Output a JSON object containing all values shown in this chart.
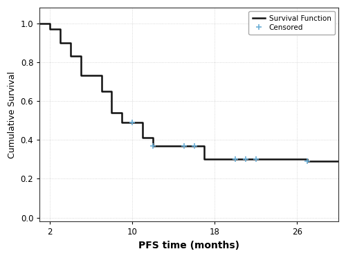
{
  "surv_x": [
    1,
    2,
    2,
    3,
    3,
    4,
    4,
    5,
    5,
    7,
    7,
    8,
    8,
    9,
    9,
    10,
    10,
    11,
    11,
    12,
    12,
    13,
    13,
    17,
    17,
    18,
    18,
    27,
    27,
    30
  ],
  "surv_y": [
    1.0,
    1.0,
    0.97,
    0.97,
    0.9,
    0.9,
    0.83,
    0.83,
    0.73,
    0.73,
    0.65,
    0.65,
    0.54,
    0.54,
    0.49,
    0.49,
    0.49,
    0.49,
    0.41,
    0.41,
    0.37,
    0.37,
    0.37,
    0.37,
    0.3,
    0.3,
    0.3,
    0.3,
    0.29,
    0.29
  ],
  "censored_x": [
    10,
    12,
    15,
    16,
    20,
    21,
    22,
    27
  ],
  "censored_y": [
    0.49,
    0.37,
    0.37,
    0.37,
    0.3,
    0.3,
    0.3,
    0.29
  ],
  "xlim": [
    1,
    30
  ],
  "ylim": [
    -0.02,
    1.08
  ],
  "xticks": [
    2,
    10,
    18,
    26
  ],
  "yticks": [
    0.0,
    0.2,
    0.4,
    0.6,
    0.8,
    1.0
  ],
  "xlabel": "PFS time (months)",
  "ylabel": "Cumulative Survival",
  "line_color": "#111111",
  "censored_color": "#6baed6",
  "grid_color": "#cccccc",
  "bg_color": "#ffffff",
  "legend_labels": [
    "Survival Function",
    "Censored"
  ],
  "line_width": 1.8,
  "xlabel_fontsize": 10,
  "ylabel_fontsize": 9,
  "tick_fontsize": 8.5
}
